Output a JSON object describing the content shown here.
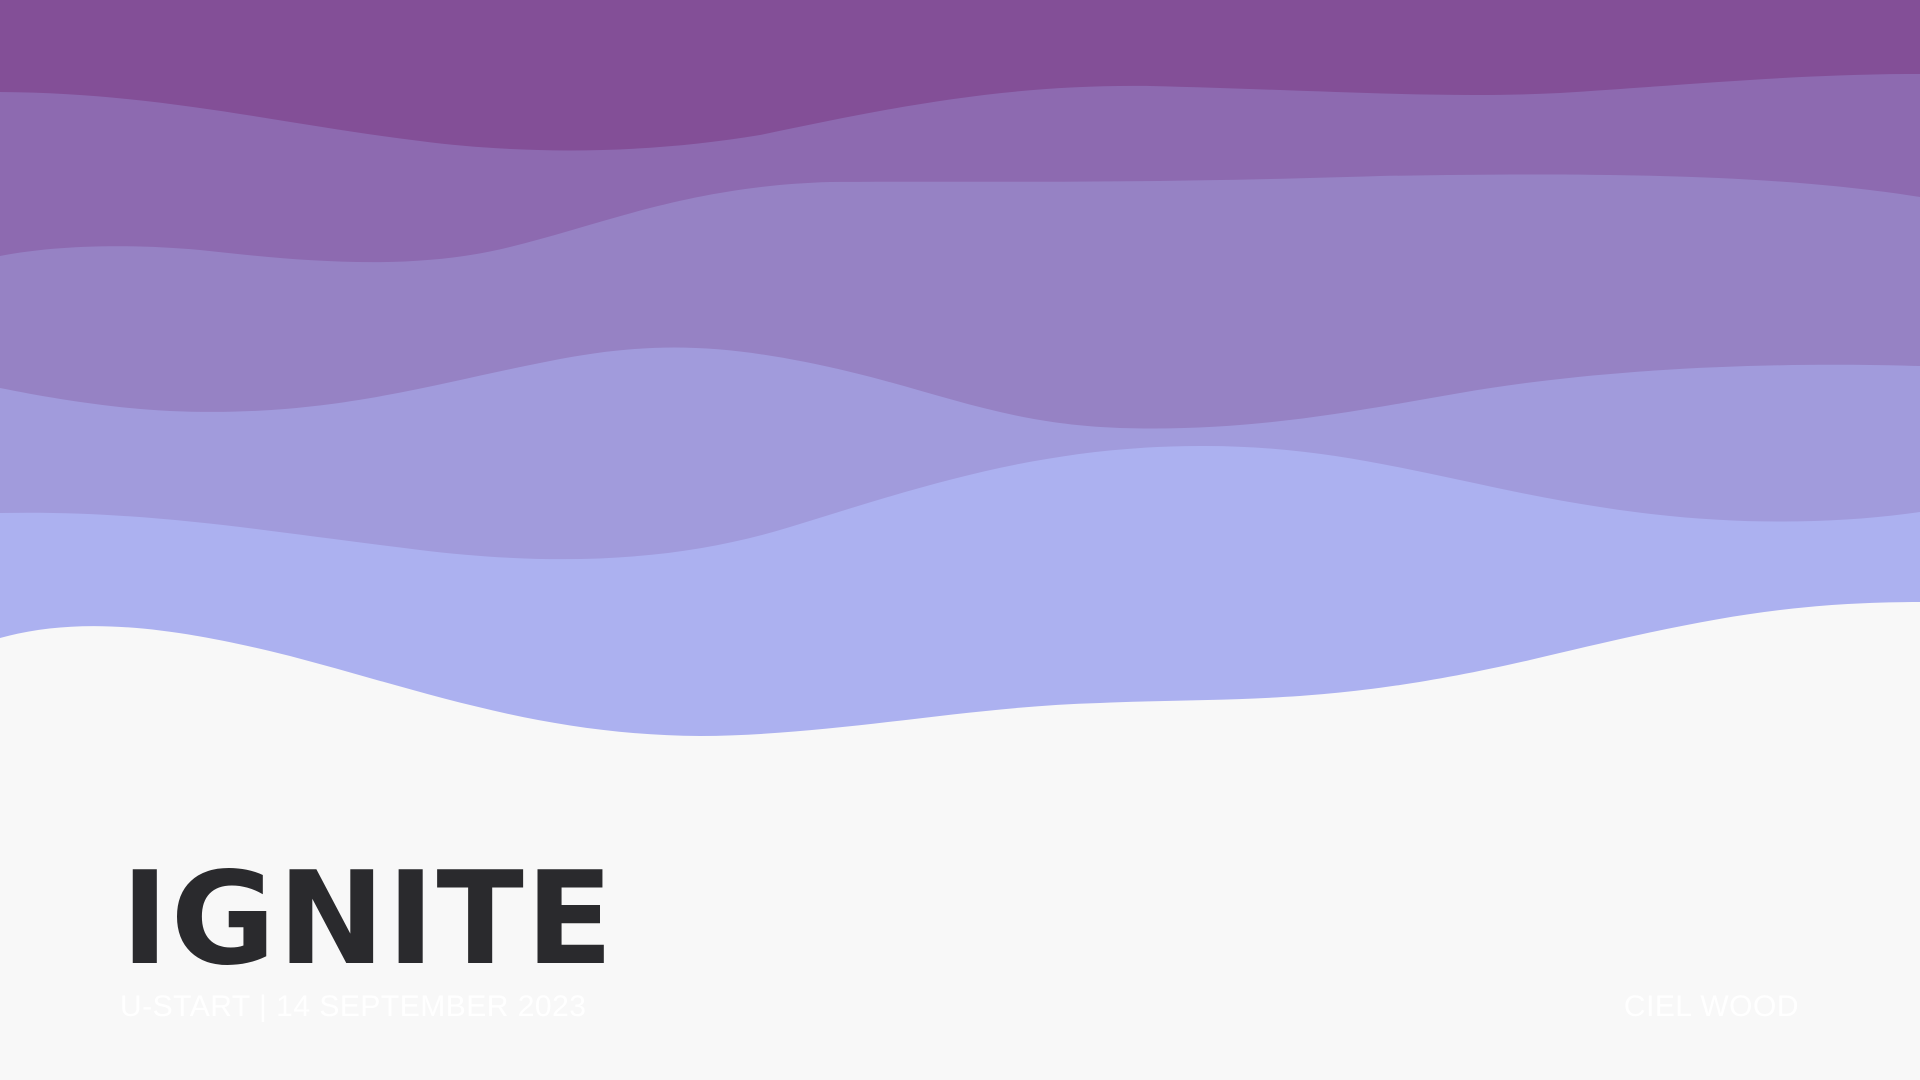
{
  "slide": {
    "title": "IGNITE",
    "footer_left": "U-START | 14 SEPTEMBER 2023",
    "footer_right": "CIEL WOOD"
  },
  "colors": {
    "background": "#f8f8f8",
    "band_1": "#834f97",
    "band_2": "#8d6ab0",
    "band_3": "#9682c4",
    "band_4": "#a19bdc",
    "band_5": "#acb1f0",
    "title": "#2a2a2d",
    "footer_text": "#ffffff"
  },
  "decoration": {
    "name": "layered-purple-waves"
  }
}
